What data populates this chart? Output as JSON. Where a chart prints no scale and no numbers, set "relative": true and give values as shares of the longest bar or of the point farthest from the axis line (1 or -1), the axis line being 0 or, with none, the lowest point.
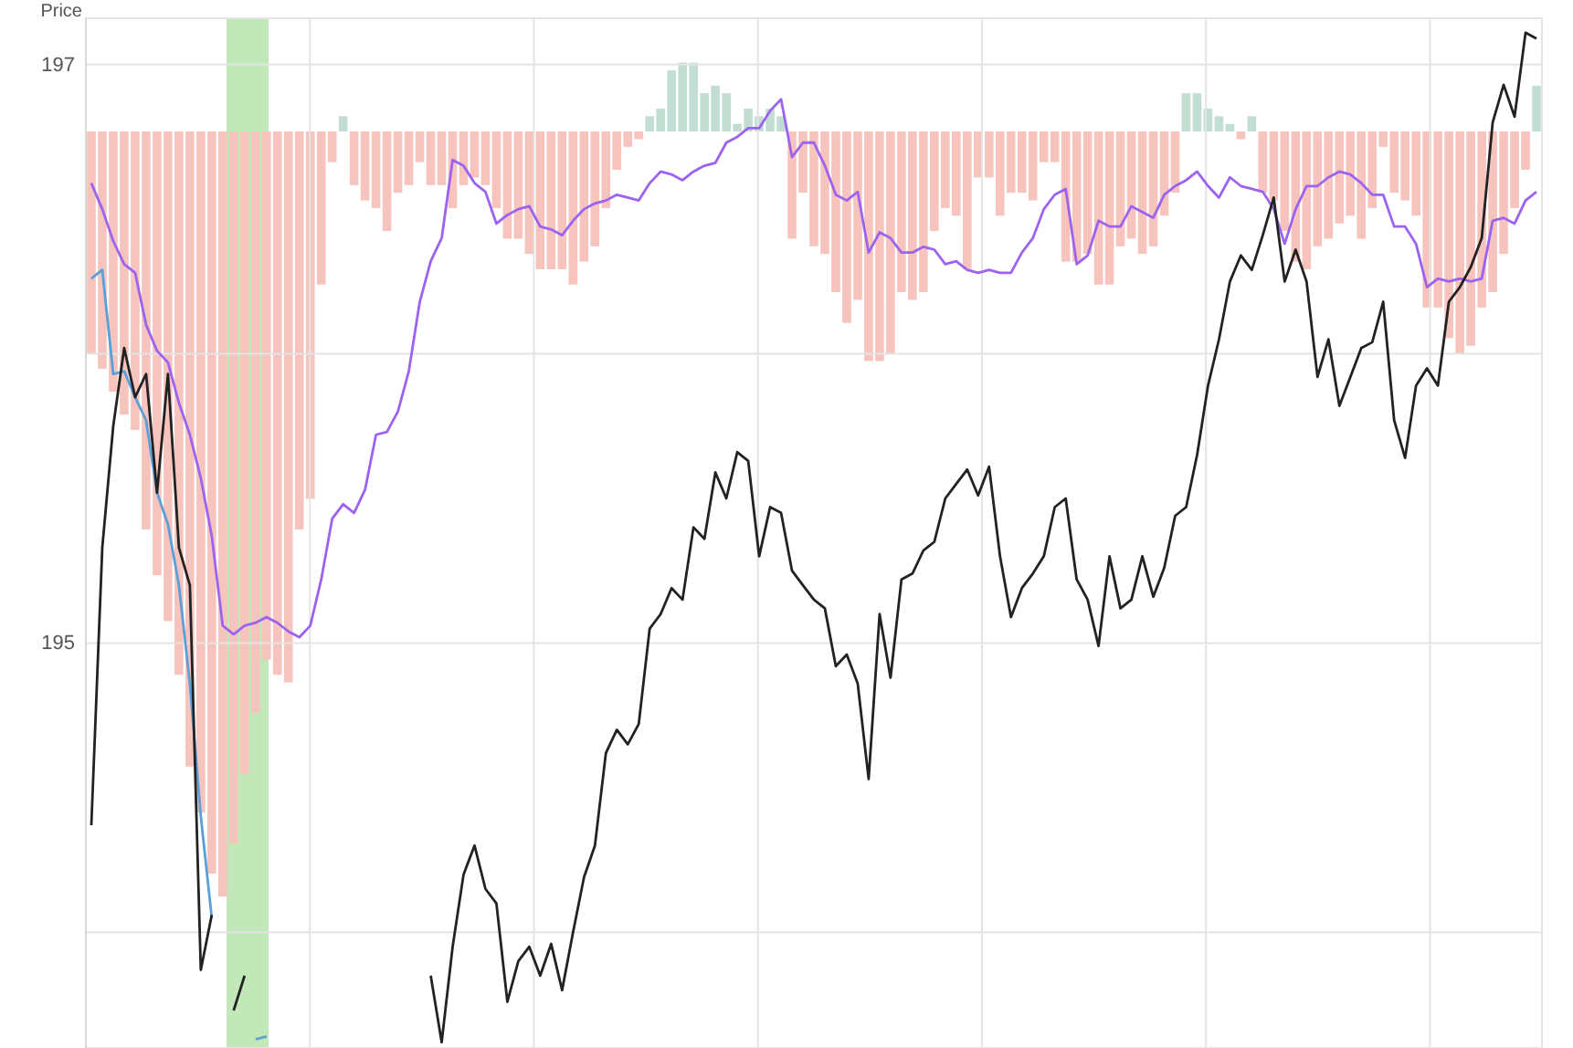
{
  "chart_data": [
    {
      "type": "line",
      "ylabel": "Price",
      "ylim": [
        193.6,
        197.16
      ],
      "yticks": [
        {
          "value": 194,
          "label": null
        },
        195,
        {
          "value": 196,
          "label": null
        },
        197
      ],
      "tick_labels": "y",
      "grid": true,
      "categories": [
        null,
        null,
        null,
        null,
        null,
        null,
        null,
        null,
        null,
        null,
        null,
        null,
        null,
        null,
        null,
        null,
        null,
        null,
        null,
        null,
        null,
        null,
        null,
        null,
        null,
        null,
        null,
        null,
        null,
        null,
        null,
        null,
        null,
        null,
        null,
        null,
        null,
        null,
        null,
        null,
        null,
        null,
        null,
        null,
        null,
        null,
        null,
        null,
        null,
        null,
        null,
        null,
        null,
        null,
        null,
        null,
        null,
        null,
        null,
        null,
        null,
        null,
        null,
        null,
        null,
        null,
        null,
        null,
        null,
        null,
        null,
        null,
        null,
        null,
        null,
        null,
        null,
        null,
        null,
        null,
        null,
        null,
        null,
        null,
        null,
        null,
        null,
        null,
        null,
        null,
        null,
        null,
        null,
        null,
        null,
        null,
        null,
        null,
        null,
        null,
        null,
        null,
        null,
        null,
        null,
        null,
        null,
        null,
        null,
        null,
        null,
        null,
        null,
        null,
        null,
        null,
        null,
        null,
        null,
        null,
        null,
        null,
        null,
        null,
        null,
        null,
        null,
        null,
        null,
        null,
        null,
        null,
        null
      ],
      "series": [
        {
          "color": "#9b63f0",
          "values": [
            196.59,
            196.5,
            196.39,
            196.31,
            196.28,
            196.1,
            196.01,
            195.97,
            195.83,
            195.72,
            195.57,
            195.37,
            195.06,
            195.03,
            195.06,
            195.07,
            195.09,
            195.07,
            195.04,
            195.02,
            195.06,
            195.22,
            195.43,
            195.48,
            195.45,
            195.53,
            195.72,
            195.73,
            195.8,
            195.94,
            196.18,
            196.32,
            196.4,
            196.67,
            196.65,
            196.59,
            196.56,
            196.45,
            196.48,
            196.5,
            196.51,
            196.44,
            196.43,
            196.41,
            196.46,
            196.5,
            196.52,
            196.53,
            196.55,
            196.54,
            196.53,
            196.59,
            196.63,
            196.62,
            196.6,
            196.63,
            196.65,
            196.66,
            196.73,
            196.75,
            196.78,
            196.78,
            196.84,
            196.88,
            196.68,
            196.73,
            196.73,
            196.65,
            196.55,
            196.53,
            196.56,
            196.35,
            196.42,
            196.4,
            196.35,
            196.35,
            196.37,
            196.36,
            196.31,
            196.32,
            196.29,
            196.28,
            196.29,
            196.28,
            196.28,
            196.35,
            196.4,
            196.5,
            196.55,
            196.57,
            196.31,
            196.34,
            196.46,
            196.44,
            196.44,
            196.51,
            196.49,
            196.47,
            196.55,
            196.58,
            196.6,
            196.63,
            196.58,
            196.54,
            196.61,
            196.58,
            196.57,
            196.56,
            196.5,
            196.38,
            196.5,
            196.58,
            196.58,
            196.61,
            196.63,
            196.62,
            196.59,
            196.55,
            196.55,
            196.44,
            196.44,
            196.38,
            196.23,
            196.26,
            196.25,
            196.26,
            196.25,
            196.26,
            196.46,
            196.47,
            196.45,
            196.53,
            196.56
          ]
        },
        {
          "color": "#5a9fd8",
          "values": [
            196.26,
            196.29,
            195.93,
            195.94,
            195.85,
            195.77,
            195.52,
            195.41,
            195.2,
            194.86,
            194.4,
            194.05,
            null,
            null,
            null,
            193.63,
            193.64,
            null,
            null,
            null,
            null,
            null,
            null,
            null,
            null,
            null,
            null,
            null,
            null,
            null,
            null,
            null,
            null,
            null,
            null,
            null,
            null,
            null,
            null,
            null,
            null,
            null,
            null,
            null,
            null,
            null,
            null,
            null,
            null,
            null,
            null,
            null,
            null,
            null,
            null,
            null,
            null,
            null,
            null,
            null,
            null,
            null,
            null,
            null,
            null,
            null,
            null,
            null,
            null,
            null,
            null,
            null,
            null,
            null,
            null,
            null,
            null,
            null,
            null,
            null,
            null,
            null,
            null,
            null,
            null,
            null,
            null,
            null,
            null,
            null,
            null,
            null,
            null,
            null,
            null,
            null,
            null,
            null,
            null,
            null,
            null,
            null,
            null,
            null,
            null,
            null,
            null,
            null,
            null,
            null,
            null,
            null,
            null,
            null,
            null,
            null,
            null,
            null,
            null,
            null,
            null,
            null,
            null,
            null,
            null,
            null,
            null,
            null,
            null,
            null,
            null,
            null,
            null
          ]
        },
        {
          "color": "#222222",
          "values": [
            194.37,
            195.33,
            195.75,
            196.02,
            195.85,
            195.93,
            195.52,
            195.93,
            195.33,
            195.2,
            193.87,
            194.06,
            null,
            193.73,
            193.85,
            null,
            null,
            null,
            null,
            null,
            null,
            null,
            null,
            null,
            null,
            null,
            null,
            null,
            null,
            null,
            null,
            193.85,
            193.62,
            193.95,
            194.2,
            194.3,
            194.15,
            194.1,
            193.76,
            193.9,
            193.95,
            193.85,
            193.96,
            193.8,
            194.0,
            194.19,
            194.3,
            194.62,
            194.7,
            194.65,
            194.72,
            195.05,
            195.1,
            195.19,
            195.15,
            195.4,
            195.36,
            195.59,
            195.5,
            195.66,
            195.63,
            195.3,
            195.47,
            195.45,
            195.25,
            195.2,
            195.15,
            195.12,
            194.92,
            194.96,
            194.86,
            194.53,
            195.1,
            194.88,
            195.22,
            195.24,
            195.32,
            195.35,
            195.5,
            195.55,
            195.6,
            195.51,
            195.61,
            195.3,
            195.09,
            195.19,
            195.24,
            195.3,
            195.47,
            195.5,
            195.22,
            195.15,
            194.99,
            195.3,
            195.12,
            195.15,
            195.3,
            195.16,
            195.26,
            195.44,
            195.47,
            195.65,
            195.89,
            196.05,
            196.25,
            196.34,
            196.29,
            196.41,
            196.54,
            196.25,
            196.36,
            196.25,
            195.92,
            196.05,
            195.82,
            195.92,
            196.02,
            196.04,
            196.18,
            195.77,
            195.64,
            195.89,
            195.95,
            195.89,
            196.18,
            196.23,
            196.3,
            196.4,
            196.8,
            196.93,
            196.82,
            197.11,
            197.09
          ]
        }
      ]
    },
    {
      "type": "bar",
      "relative": true,
      "tick_labels": false,
      "categories": [
        null,
        null,
        null,
        null,
        null,
        null,
        null,
        null,
        null,
        null,
        null,
        null,
        null,
        null,
        null,
        null,
        null,
        null,
        null,
        null,
        null,
        null,
        null,
        null,
        null,
        null,
        null,
        null,
        null,
        null,
        null,
        null,
        null,
        null,
        null,
        null,
        null,
        null,
        null,
        null,
        null,
        null,
        null,
        null,
        null,
        null,
        null,
        null,
        null,
        null,
        null,
        null,
        null,
        null,
        null,
        null,
        null,
        null,
        null,
        null,
        null,
        null,
        null,
        null,
        null,
        null,
        null,
        null,
        null,
        null,
        null,
        null,
        null,
        null,
        null,
        null,
        null,
        null,
        null,
        null,
        null,
        null,
        null,
        null,
        null,
        null,
        null,
        null,
        null,
        null,
        null,
        null,
        null,
        null,
        null,
        null,
        null,
        null,
        null,
        null,
        null,
        null,
        null,
        null,
        null,
        null,
        null,
        null,
        null,
        null,
        null,
        null,
        null,
        null,
        null,
        null,
        null,
        null,
        null,
        null,
        null,
        null,
        null,
        null,
        null,
        null,
        null,
        null,
        null,
        null,
        null,
        null,
        null
      ],
      "values": [
        -0.29,
        -0.31,
        -0.34,
        -0.37,
        -0.39,
        -0.52,
        -0.58,
        -0.64,
        -0.71,
        -0.83,
        -0.89,
        -0.97,
        -1,
        -0.93,
        -0.84,
        -0.76,
        -0.69,
        -0.71,
        -0.72,
        -0.52,
        -0.48,
        -0.2,
        -0.04,
        0.02,
        -0.07,
        -0.09,
        -0.1,
        -0.13,
        -0.08,
        -0.07,
        -0.04,
        -0.07,
        -0.07,
        -0.1,
        -0.07,
        -0.06,
        -0.07,
        -0.1,
        -0.14,
        -0.14,
        -0.16,
        -0.18,
        -0.18,
        -0.18,
        -0.2,
        -0.17,
        -0.15,
        -0.1,
        -0.05,
        -0.02,
        -0.01,
        0.02,
        0.03,
        0.08,
        0.09,
        0.09,
        0.05,
        0.06,
        0.05,
        0.01,
        0.03,
        0.02,
        0.03,
        0.02,
        -0.14,
        -0.08,
        -0.15,
        -0.16,
        -0.21,
        -0.25,
        -0.22,
        -0.3,
        -0.3,
        -0.29,
        -0.21,
        -0.22,
        -0.21,
        -0.13,
        -0.1,
        -0.11,
        -0.18,
        -0.06,
        -0.06,
        -0.11,
        -0.08,
        -0.08,
        -0.09,
        -0.04,
        -0.04,
        -0.17,
        -0.17,
        -0.16,
        -0.2,
        -0.2,
        -0.15,
        -0.14,
        -0.16,
        -0.15,
        -0.11,
        -0.08,
        0.05,
        0.05,
        0.03,
        0.02,
        0.01,
        -0.01,
        0.02,
        -0.08,
        -0.09,
        -0.13,
        -0.17,
        -0.18,
        -0.15,
        -0.14,
        -0.12,
        -0.11,
        -0.14,
        -0.1,
        -0.02,
        -0.08,
        -0.09,
        -0.11,
        -0.23,
        -0.23,
        -0.27,
        -0.29,
        -0.28,
        -0.23,
        -0.21,
        -0.16,
        -0.1,
        -0.05,
        0.06
      ],
      "colors": [
        "#f6c3bd",
        "#f6c3bd",
        "#f6c3bd",
        "#f6c3bd",
        "#f6c3bd",
        "#f6c3bd",
        "#f6c3bd",
        "#f6c3bd",
        "#f6c3bd",
        "#f6c3bd",
        "#f6c3bd",
        "#f6c3bd",
        "#f6c3bd",
        "#f6c3bd",
        "#f6c3bd",
        "#f6c3bd",
        "#f6c3bd",
        "#f6c3bd",
        "#f6c3bd",
        "#f6c3bd",
        "#f6c3bd",
        "#f6c3bd",
        "#f6c3bd",
        "#c2ddd2",
        "#f6c3bd",
        "#f6c3bd",
        "#f6c3bd",
        "#f6c3bd",
        "#f6c3bd",
        "#f6c3bd",
        "#f6c3bd",
        "#f6c3bd",
        "#f6c3bd",
        "#f6c3bd",
        "#f6c3bd",
        "#f6c3bd",
        "#f6c3bd",
        "#f6c3bd",
        "#f6c3bd",
        "#f6c3bd",
        "#f6c3bd",
        "#f6c3bd",
        "#f6c3bd",
        "#f6c3bd",
        "#f6c3bd",
        "#f6c3bd",
        "#f6c3bd",
        "#f6c3bd",
        "#f6c3bd",
        "#f6c3bd",
        "#f6c3bd",
        "#c2ddd2",
        "#c2ddd2",
        "#c2ddd2",
        "#c2ddd2",
        "#c2ddd2",
        "#c2ddd2",
        "#c2ddd2",
        "#c2ddd2",
        "#c2ddd2",
        "#c2ddd2",
        "#c2ddd2",
        "#c2ddd2",
        "#c2ddd2",
        "#f6c3bd",
        "#f6c3bd",
        "#f6c3bd",
        "#f6c3bd",
        "#f6c3bd",
        "#f6c3bd",
        "#f6c3bd",
        "#f6c3bd",
        "#f6c3bd",
        "#f6c3bd",
        "#f6c3bd",
        "#f6c3bd",
        "#f6c3bd",
        "#f6c3bd",
        "#f6c3bd",
        "#f6c3bd",
        "#f6c3bd",
        "#f6c3bd",
        "#f6c3bd",
        "#f6c3bd",
        "#f6c3bd",
        "#f6c3bd",
        "#f6c3bd",
        "#f6c3bd",
        "#f6c3bd",
        "#f6c3bd",
        "#f6c3bd",
        "#f6c3bd",
        "#f6c3bd",
        "#f6c3bd",
        "#f6c3bd",
        "#f6c3bd",
        "#f6c3bd",
        "#f6c3bd",
        "#f6c3bd",
        "#f6c3bd",
        "#c2ddd2",
        "#c2ddd2",
        "#c2ddd2",
        "#c2ddd2",
        "#c2ddd2",
        "#f6c3bd",
        "#c2ddd2",
        "#f6c3bd",
        "#f6c3bd",
        "#f6c3bd",
        "#f6c3bd",
        "#f6c3bd",
        "#f6c3bd",
        "#f6c3bd",
        "#f6c3bd",
        "#f6c3bd",
        "#f6c3bd",
        "#f6c3bd",
        "#f6c3bd",
        "#f6c3bd",
        "#f6c3bd",
        "#f6c3bd",
        "#f6c3bd",
        "#f6c3bd",
        "#f6c3bd",
        "#f6c3bd",
        "#f6c3bd",
        "#f6c3bd",
        "#f6c3bd",
        "#f6c3bd",
        "#f6c3bd",
        "#f6c3bd",
        "#c2ddd2"
      ]
    }
  ]
}
